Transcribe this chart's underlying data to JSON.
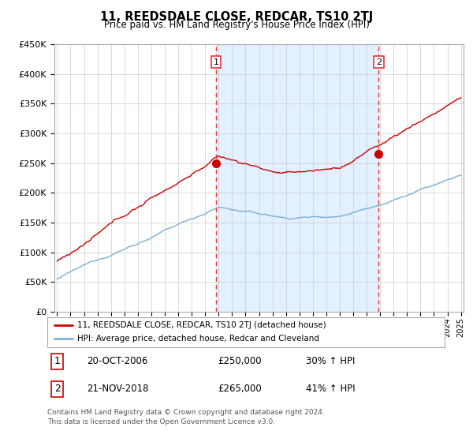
{
  "title": "11, REEDSDALE CLOSE, REDCAR, TS10 2TJ",
  "subtitle": "Price paid vs. HM Land Registry's House Price Index (HPI)",
  "legend_line1": "11, REEDSDALE CLOSE, REDCAR, TS10 2TJ (detached house)",
  "legend_line2": "HPI: Average price, detached house, Redcar and Cleveland",
  "transaction1_date": "20-OCT-2006",
  "transaction1_price": 250000,
  "transaction1_hpi": "30% ↑ HPI",
  "transaction2_date": "21-NOV-2018",
  "transaction2_price": 265000,
  "transaction2_hpi": "41% ↑ HPI",
  "footnote": "Contains HM Land Registry data © Crown copyright and database right 2024.\nThis data is licensed under the Open Government Licence v3.0.",
  "red_line_color": "#cc0000",
  "blue_line_color": "#7bafd4",
  "bg_fill_color": "#ddeeff",
  "dashed_line_color": "#ee3333",
  "marker_color": "#cc0000",
  "grid_color": "#cccccc",
  "ylim": [
    0,
    450000
  ],
  "yticks": [
    0,
    50000,
    100000,
    150000,
    200000,
    250000,
    300000,
    350000,
    400000,
    450000
  ],
  "start_year": 1995,
  "end_year": 2025,
  "transaction1_x": 2006.8,
  "transaction2_x": 2018.9
}
